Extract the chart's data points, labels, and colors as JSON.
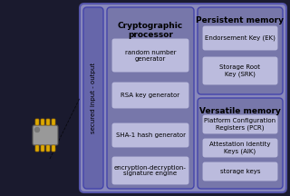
{
  "bg_color": "#1a1a2e",
  "outer_box_color": "#6666aa",
  "inner_box_medium": "#8888bb",
  "card_color": "#aaaacc",
  "white_box_color": "#ccccdd",
  "outer_border_color": "#4444aa",
  "crypto_title": "Cryptographic\nprocessor",
  "crypto_cards": [
    "random number\ngenerator",
    "RSA key generator",
    "SHA-1 hash generator",
    "encryption-decryption-\nsignature engine"
  ],
  "persistent_title": "Persistent memory",
  "persistent_cards": [
    "Endorsement Key (EK)",
    "Storage Root\nKey (SRK)"
  ],
  "versatile_title": "Versatile memory",
  "versatile_cards": [
    "Platform Configuration\nRegisters (PCR)",
    "Attestation Identity\nKeys (AIK)",
    "storage keys"
  ],
  "sidebar_text": "secured input - output",
  "figsize": [
    3.2,
    2.16
  ],
  "dpi": 100
}
